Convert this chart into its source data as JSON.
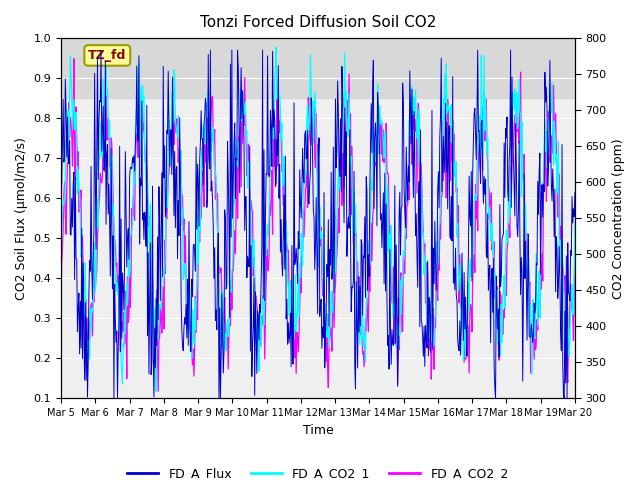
{
  "title": "Tonzi Forced Diffusion Soil CO2",
  "xlabel": "Time",
  "ylabel_left": "CO2 Soil Flux (μmol/m2/s)",
  "ylabel_right": "CO2 Concentration (ppm)",
  "ylim_left": [
    0.1,
    1.0
  ],
  "ylim_right": [
    300,
    800
  ],
  "yticks_left": [
    0.1,
    0.2,
    0.3,
    0.4,
    0.5,
    0.6,
    0.7,
    0.8,
    0.9,
    1.0
  ],
  "yticks_right": [
    300,
    350,
    400,
    450,
    500,
    550,
    600,
    650,
    700,
    750,
    800
  ],
  "xtick_positions": [
    0,
    1,
    2,
    3,
    4,
    5,
    6,
    7,
    8,
    9,
    10,
    11,
    12,
    13,
    14,
    15
  ],
  "xtick_labels": [
    "Mar 5",
    "Mar 6",
    "Mar 7",
    "Mar 8",
    "Mar 9",
    "Mar 10",
    "Mar 11",
    "Mar 12",
    "Mar 13",
    "Mar 14",
    "Mar 15",
    "Mar 16",
    "Mar 17",
    "Mar 18",
    "Mar 19",
    "Mar 20"
  ],
  "n_days": 15,
  "n_points_per_day": 48,
  "flux_color": "#0000CD",
  "co2_1_color": "#00FFFF",
  "co2_2_color": "#FF00FF",
  "legend_labels": [
    "FD_A_Flux",
    "FD_A_CO2_1",
    "FD_A_CO2_2"
  ],
  "tag_text": "TZ_fd",
  "tag_bg": "#FFFF99",
  "tag_border": "#999900",
  "tag_text_color": "#8B0000",
  "shade_ymin": 0.85,
  "shade_ymax": 1.0,
  "shade_color": "#D8D8D8",
  "bg_color": "#EFEFEF",
  "seed": 42,
  "title_fontsize": 11,
  "axis_label_fontsize": 9,
  "tick_fontsize": 8,
  "xtick_fontsize": 7
}
